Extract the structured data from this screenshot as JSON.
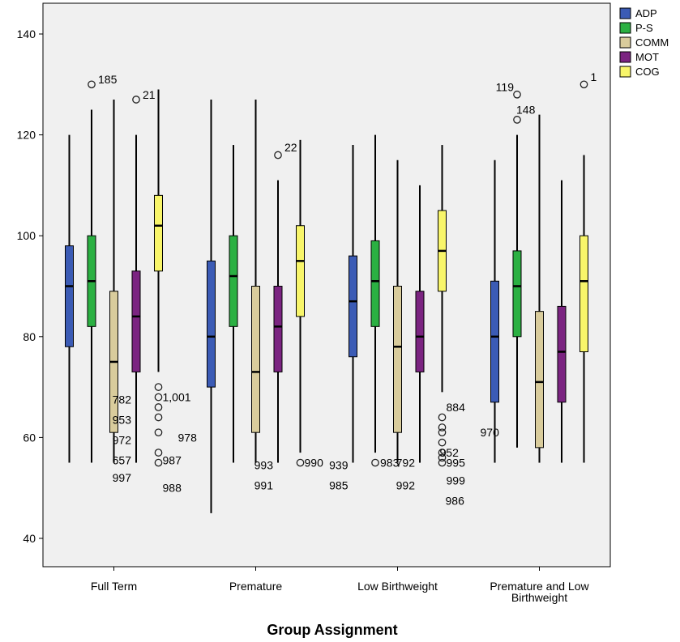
{
  "chart_data": {
    "type": "boxplot",
    "xlabel": "Group Assignment",
    "ylabel": "",
    "ylim": [
      40,
      145
    ],
    "yticks": [
      40,
      60,
      80,
      100,
      120,
      140
    ],
    "legend_position": "top-right",
    "categories": [
      "Full Term",
      "Premature",
      "Low Birthweight",
      "Premature and Low Birthweight"
    ],
    "category_labels": [
      [
        "Full Term"
      ],
      [
        "Premature"
      ],
      [
        "Low Birthweight"
      ],
      [
        "Premature and Low",
        "Birthweight"
      ]
    ],
    "series": [
      {
        "name": "ADP",
        "color": "#3b5bb5",
        "boxes": [
          {
            "min": 55,
            "q1": 78,
            "median": 90,
            "q3": 98,
            "max": 120,
            "outliers": []
          },
          {
            "min": 45,
            "q1": 70,
            "median": 80,
            "q3": 95,
            "max": 127,
            "outliers": []
          },
          {
            "min": 55,
            "q1": 76,
            "median": 87,
            "q3": 96,
            "max": 118,
            "outliers": []
          },
          {
            "min": 55,
            "q1": 67,
            "median": 80,
            "q3": 91,
            "max": 115,
            "outliers": []
          }
        ]
      },
      {
        "name": "P-S",
        "color": "#2bb042",
        "boxes": [
          {
            "min": 55,
            "q1": 82,
            "median": 91,
            "q3": 100,
            "max": 125,
            "outliers": [
              130
            ]
          },
          {
            "min": 55,
            "q1": 82,
            "median": 92,
            "q3": 100,
            "max": 118,
            "outliers": []
          },
          {
            "min": 57,
            "q1": 82,
            "median": 91,
            "q3": 99,
            "max": 120,
            "outliers": [
              55
            ]
          },
          {
            "min": 58,
            "q1": 80,
            "median": 90,
            "q3": 97,
            "max": 120,
            "outliers": [
              128,
              123
            ]
          }
        ]
      },
      {
        "name": "COMM",
        "color": "#d9cc9c",
        "boxes": [
          {
            "min": 55,
            "q1": 61,
            "median": 75,
            "q3": 89,
            "max": 127,
            "outliers": []
          },
          {
            "min": 55,
            "q1": 61,
            "median": 73,
            "q3": 90,
            "max": 127,
            "outliers": []
          },
          {
            "min": 55,
            "q1": 61,
            "median": 78,
            "q3": 90,
            "max": 115,
            "outliers": []
          },
          {
            "min": 55,
            "q1": 58,
            "median": 71,
            "q3": 85,
            "max": 124,
            "outliers": []
          }
        ]
      },
      {
        "name": "MOT",
        "color": "#7b2481",
        "boxes": [
          {
            "min": 55,
            "q1": 73,
            "median": 84,
            "q3": 93,
            "max": 120,
            "outliers": [
              127
            ]
          },
          {
            "min": 55,
            "q1": 73,
            "median": 82,
            "q3": 90,
            "max": 111,
            "outliers": [
              116
            ]
          },
          {
            "min": 55,
            "q1": 73,
            "median": 80,
            "q3": 89,
            "max": 110,
            "outliers": []
          },
          {
            "min": 55,
            "q1": 67,
            "median": 77,
            "q3": 86,
            "max": 111,
            "outliers": []
          }
        ]
      },
      {
        "name": "COG",
        "color": "#f8f56a",
        "boxes": [
          {
            "min": 73,
            "q1": 93,
            "median": 102,
            "q3": 108,
            "max": 129,
            "outliers": [
              70,
              68,
              66,
              64,
              61,
              57,
              55
            ]
          },
          {
            "min": 57,
            "q1": 84,
            "median": 95,
            "q3": 102,
            "max": 119,
            "outliers": [
              55
            ]
          },
          {
            "min": 69,
            "q1": 89,
            "median": 97,
            "q3": 105,
            "max": 118,
            "outliers": [
              64,
              62,
              61,
              59,
              57,
              56,
              55
            ]
          },
          {
            "min": 55,
            "q1": 77,
            "median": 91,
            "q3": 100,
            "max": 116,
            "outliers": [
              130
            ]
          }
        ]
      }
    ],
    "annotations": [
      {
        "text": "185",
        "x": "Full Term",
        "series": "P-S",
        "y": 131
      },
      {
        "text": "21",
        "x": "Full Term",
        "series": "MOT",
        "y": 128
      },
      {
        "text": "782",
        "x": "Full Term",
        "series": "MOT",
        "y": 67.5
      },
      {
        "text": "1,001",
        "x": "Full Term",
        "series": "COG",
        "y": 68
      },
      {
        "text": "953",
        "x": "Full Term",
        "series": "MOT",
        "y": 63.5
      },
      {
        "text": "972",
        "x": "Full Term",
        "series": "MOT",
        "y": 59.5
      },
      {
        "text": "978",
        "x": "Full Term",
        "series": "COG",
        "y": 60
      },
      {
        "text": "657",
        "x": "Full Term",
        "series": "MOT",
        "y": 55.5
      },
      {
        "text": "987",
        "x": "Full Term",
        "series": "COG",
        "y": 55.5
      },
      {
        "text": "997",
        "x": "Full Term",
        "series": "MOT",
        "y": 52
      },
      {
        "text": "988",
        "x": "Full Term",
        "series": "COG",
        "y": 50
      },
      {
        "text": "22",
        "x": "Premature",
        "series": "MOT",
        "y": 117.5
      },
      {
        "text": "993",
        "x": "Premature",
        "series": "MOT",
        "y": 54.5
      },
      {
        "text": "990",
        "x": "Premature",
        "series": "COG",
        "y": 55
      },
      {
        "text": "991",
        "x": "Premature",
        "series": "MOT",
        "y": 50.5
      },
      {
        "text": "939",
        "x": "Low Birthweight",
        "series": "ADP",
        "y": 54.5
      },
      {
        "text": "983",
        "x": "Low Birthweight",
        "series": "P-S",
        "y": 55
      },
      {
        "text": "985",
        "x": "Low Birthweight",
        "series": "ADP",
        "y": 50.5
      },
      {
        "text": "884",
        "x": "Low Birthweight",
        "series": "COG",
        "y": 66
      },
      {
        "text": "792",
        "x": "Low Birthweight",
        "series": "MOT",
        "y": 55
      },
      {
        "text": "995",
        "x": "Low Birthweight",
        "series": "COG",
        "y": 55
      },
      {
        "text": "952",
        "x": "Low Birthweight",
        "series": "COG",
        "y": 57
      },
      {
        "text": "992",
        "x": "Low Birthweight",
        "series": "MOT",
        "y": 50.5
      },
      {
        "text": "999",
        "x": "Low Birthweight",
        "series": "COG",
        "y": 51.5
      },
      {
        "text": "986",
        "x": "Low Birthweight",
        "series": "COG",
        "y": 47.5
      },
      {
        "text": "970",
        "x": "Premature and Low Birthweight",
        "series": "ADP",
        "y": 61
      },
      {
        "text": "119",
        "x": "Premature and Low Birthweight",
        "series": "P-S",
        "y": 129.5
      },
      {
        "text": "148",
        "x": "Premature and Low Birthweight",
        "series": "P-S",
        "y": 125
      },
      {
        "text": "1",
        "x": "Premature and Low Birthweight",
        "series": "COG",
        "y": 131.5
      }
    ]
  }
}
